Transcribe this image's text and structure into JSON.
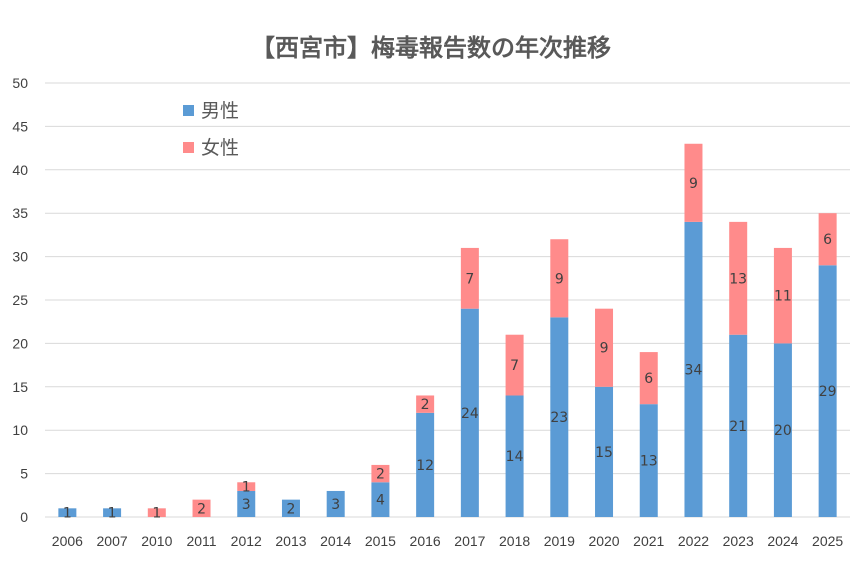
{
  "chart_data": {
    "type": "bar",
    "stacked": true,
    "title": "【西宮市】梅毒報告数の年次推移",
    "xlabel": "",
    "ylabel": "",
    "ylim": [
      0,
      50
    ],
    "yticks": [
      0,
      5,
      10,
      15,
      20,
      25,
      30,
      35,
      40,
      45,
      50
    ],
    "grid": true,
    "legend_position": "top-left",
    "categories": [
      "2006",
      "2007",
      "2010",
      "2011",
      "2012",
      "2013",
      "2014",
      "2015",
      "2016",
      "2017",
      "2018",
      "2019",
      "2020",
      "2021",
      "2022",
      "2023",
      "2024",
      "2025"
    ],
    "series": [
      {
        "name": "男性",
        "color": "#5b9bd5",
        "values": [
          1,
          1,
          0,
          0,
          3,
          2,
          3,
          4,
          12,
          24,
          14,
          23,
          15,
          13,
          34,
          21,
          20,
          29
        ]
      },
      {
        "name": "女性",
        "color": "#ff8b8b",
        "values": [
          0,
          0,
          1,
          2,
          1,
          0,
          0,
          2,
          2,
          7,
          7,
          9,
          9,
          6,
          9,
          13,
          11,
          6
        ]
      }
    ]
  }
}
